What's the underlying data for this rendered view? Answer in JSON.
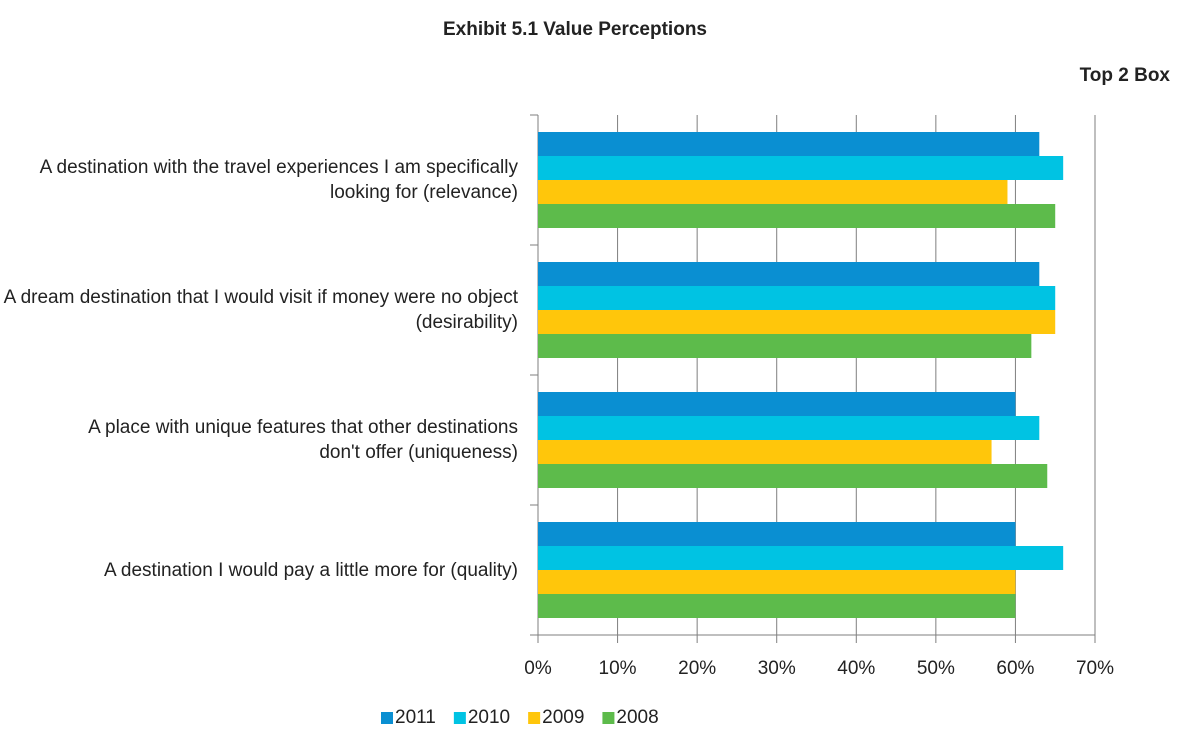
{
  "chart_data": {
    "type": "hbar",
    "title": "Exhibit 5.1 Value Perceptions",
    "subtitle": "Top 2 Box",
    "categories": [
      "A destination with the travel experiences I am specifically looking for (relevance)",
      "A dream destination that I would visit if money were no object (desirability)",
      "A place with unique features that other destinations don't offer (uniqueness)",
      "A destination I would pay a little more for (quality)"
    ],
    "series": [
      {
        "name": "2011",
        "color": "#0a8fd2",
        "values": [
          63,
          63,
          60,
          60
        ]
      },
      {
        "name": "2010",
        "color": "#00c3e3",
        "values": [
          66,
          65,
          63,
          66
        ]
      },
      {
        "name": "2009",
        "color": "#ffc60b",
        "values": [
          59,
          65,
          57,
          60
        ]
      },
      {
        "name": "2008",
        "color": "#5dbb4b",
        "values": [
          65,
          62,
          64,
          60
        ]
      }
    ],
    "xlim": [
      0,
      70
    ],
    "xticks": [
      {
        "value": 0,
        "label": "0%"
      },
      {
        "value": 10,
        "label": "10%"
      },
      {
        "value": 20,
        "label": "20%"
      },
      {
        "value": 30,
        "label": "30%"
      },
      {
        "value": 40,
        "label": "40%"
      },
      {
        "value": 50,
        "label": "50%"
      },
      {
        "value": 60,
        "label": "60%"
      },
      {
        "value": 70,
        "label": "70%"
      }
    ],
    "grid": true,
    "legend": "bottom"
  }
}
